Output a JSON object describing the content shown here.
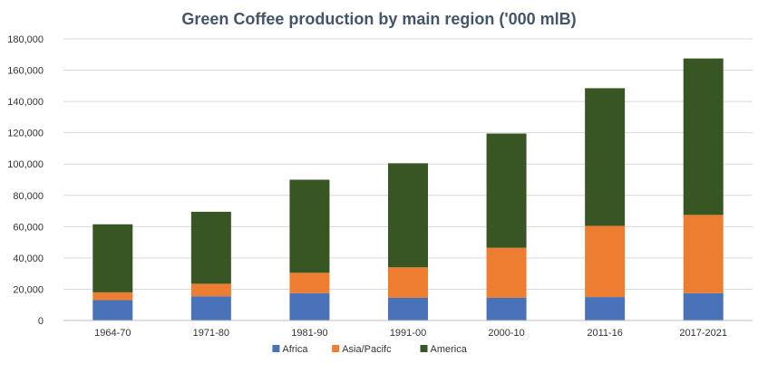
{
  "chart_data": {
    "type": "bar",
    "stacked": true,
    "title": "Green Coffee production by main region  ('000 mlB)",
    "xlabel": "",
    "ylabel": "",
    "categories": [
      "1964-70",
      "1971-80",
      "1981-90",
      "1991-00",
      "2000-10",
      "2011-16",
      "2017-2021"
    ],
    "ylim": [
      0,
      180000
    ],
    "yticks": [
      0,
      20000,
      40000,
      60000,
      80000,
      100000,
      120000,
      140000,
      160000,
      180000
    ],
    "ytick_labels": [
      "0",
      "20,000",
      "40,000",
      "60,000",
      "80,000",
      "100,000",
      "120,000",
      "140,000",
      "160,000",
      "180,000"
    ],
    "grid": true,
    "legend_position": "bottom",
    "series": [
      {
        "name": "Africa",
        "color": "#4a72b8",
        "values": [
          13000,
          15500,
          17500,
          14500,
          14500,
          15000,
          17500
        ]
      },
      {
        "name": "Asia/Pacifc",
        "color": "#ed7d31",
        "values": [
          5000,
          8000,
          13000,
          19500,
          32000,
          45500,
          50000
        ]
      },
      {
        "name": "America",
        "color": "#375623",
        "values": [
          43500,
          46000,
          59500,
          66500,
          73000,
          88000,
          100000
        ]
      }
    ]
  }
}
